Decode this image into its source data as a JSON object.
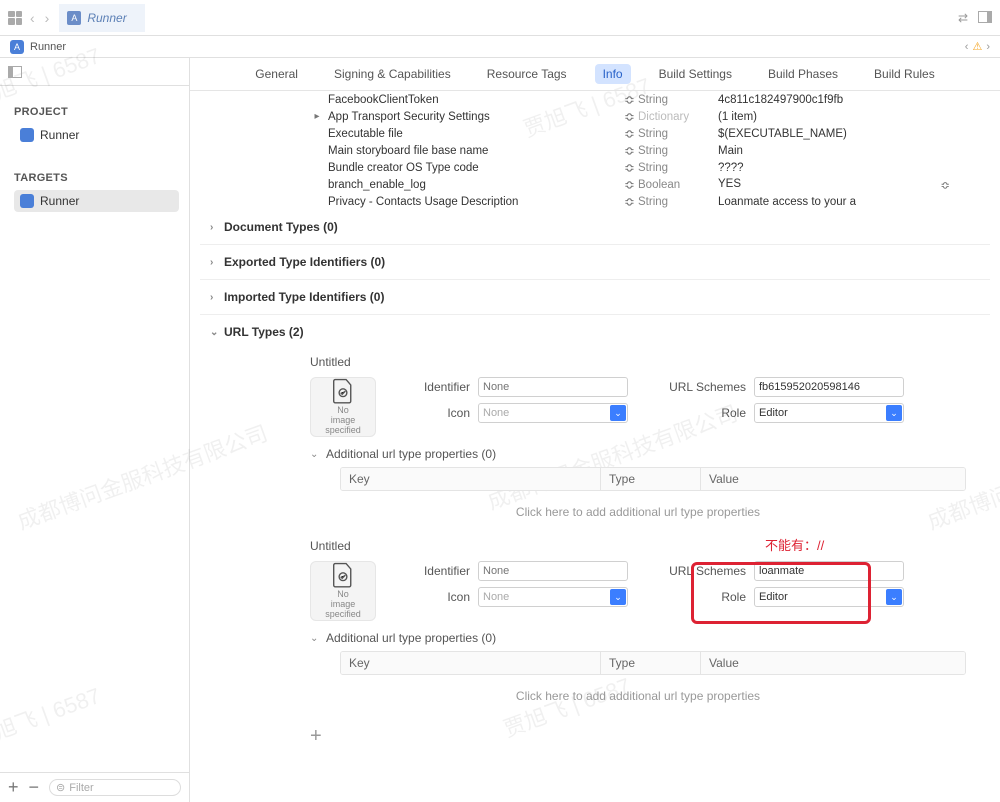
{
  "toolbar": {
    "tab_label": "Runner"
  },
  "breadcrumb": {
    "project": "Runner",
    "nav_left": "‹",
    "nav_right": "›"
  },
  "sidebar": {
    "project_heading": "PROJECT",
    "project_item": "Runner",
    "targets_heading": "TARGETS",
    "target_item": "Runner",
    "filter_placeholder": "Filter",
    "plus": "+",
    "minus": "−"
  },
  "tabs": {
    "items": [
      "General",
      "Signing & Capabilities",
      "Resource Tags",
      "Info",
      "Build Settings",
      "Build Phases",
      "Build Rules"
    ],
    "active_index": 3
  },
  "plist": [
    {
      "key": "FacebookClientToken",
      "type": "String",
      "value": "4c811c182497900c1f9fb",
      "disc": ""
    },
    {
      "key": "App Transport Security Settings",
      "type": "Dictionary",
      "value": "(1 item)",
      "disc": "▸",
      "dict": true
    },
    {
      "key": "Executable file",
      "type": "String",
      "value": "$(EXECUTABLE_NAME)",
      "disc": ""
    },
    {
      "key": "Main storyboard file base name",
      "type": "String",
      "value": "Main",
      "disc": ""
    },
    {
      "key": "Bundle creator OS Type code",
      "type": "String",
      "value": "????",
      "disc": ""
    },
    {
      "key": "branch_enable_log",
      "type": "Boolean",
      "value": "YES",
      "disc": "",
      "selector": true
    },
    {
      "key": "Privacy - Contacts Usage Description",
      "type": "String",
      "value": "Loanmate access to your a",
      "disc": ""
    }
  ],
  "sections": {
    "doc_types": "Document Types (0)",
    "exported": "Exported Type Identifiers (0)",
    "imported": "Imported Type Identifiers (0)",
    "url_types": "URL Types (2)"
  },
  "url_types": [
    {
      "title": "Untitled",
      "identifier_placeholder": "None",
      "icon_placeholder": "None",
      "schemes": "fb615952020598146",
      "role": "Editor",
      "img_line1": "No",
      "img_line2": "image",
      "img_line3": "specified",
      "add_props": "Additional url type properties (0)",
      "hint": "Click here to add additional url type properties"
    },
    {
      "title": "Untitled",
      "identifier_placeholder": "None",
      "icon_placeholder": "None",
      "schemes": "loanmate",
      "role": "Editor",
      "img_line1": "No",
      "img_line2": "image",
      "img_line3": "specified",
      "add_props": "Additional url type properties (0)",
      "hint": "Click here to add additional url type properties"
    }
  ],
  "labels": {
    "identifier": "Identifier",
    "icon": "Icon",
    "url_schemes": "URL Schemes",
    "role": "Role",
    "key": "Key",
    "type": "Type",
    "value": "Value"
  },
  "annotation": {
    "text": "不能有：//"
  },
  "watermark": "贾旭飞 | 6587",
  "watermark2": "成都博问金服科技有限公司"
}
